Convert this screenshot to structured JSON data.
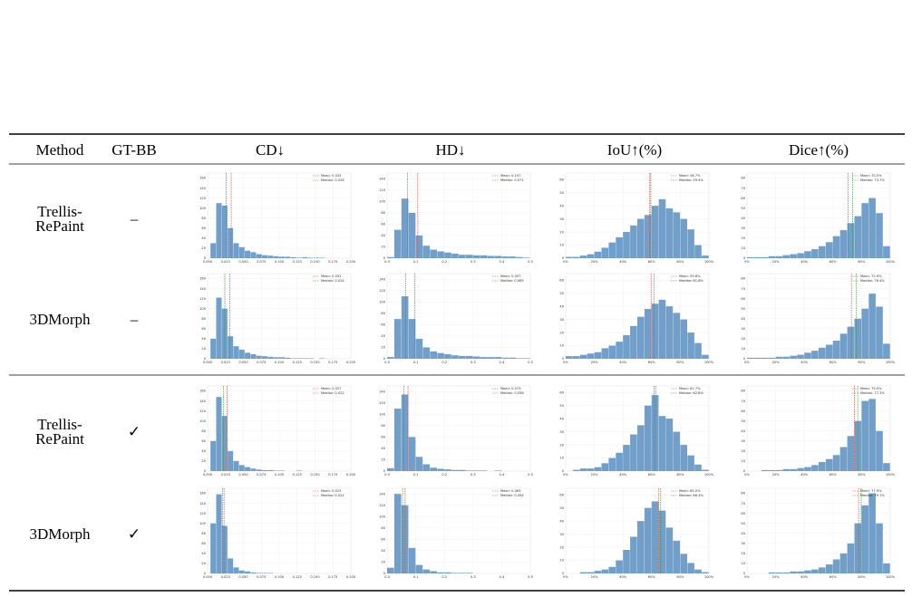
{
  "table": {
    "headers": [
      "Method",
      "GT-BB",
      "CD↓",
      "HD↓",
      "IoU↑(%)",
      "Dice↑(%)"
    ],
    "bar_color": "#6f9fca",
    "mean_color": "#e0473c",
    "median_color": "#3a9a3a",
    "columns": [
      {
        "xlim": [
          0,
          0.2
        ],
        "ylim": [
          0,
          170
        ],
        "xticks": [
          {
            "value": 0,
            "label": "0.000"
          },
          {
            "value": 0.025,
            "label": "0.025"
          },
          {
            "value": 0.05,
            "label": "0.050"
          },
          {
            "value": 0.075,
            "label": "0.075"
          },
          {
            "value": 0.1,
            "label": "0.100"
          },
          {
            "value": 0.125,
            "label": "0.125"
          },
          {
            "value": 0.15,
            "label": "0.150"
          },
          {
            "value": 0.175,
            "label": "0.175"
          },
          {
            "value": 0.2,
            "label": "0.200"
          }
        ],
        "yticks": [
          0,
          20,
          40,
          60,
          80,
          100,
          120,
          140,
          160
        ],
        "bins": [
          0.004,
          0.012,
          0.02,
          0.028,
          0.036,
          0.044,
          0.052,
          0.06,
          0.068,
          0.076,
          0.084,
          0.092,
          0.1,
          0.108,
          0.116,
          0.124,
          0.132,
          0.14,
          0.148,
          0.156,
          0.164
        ]
      },
      {
        "xlim": [
          0,
          0.5
        ],
        "ylim": [
          0,
          150
        ],
        "xticks": [
          {
            "value": 0,
            "label": "0.0"
          },
          {
            "value": 0.1,
            "label": "0.1"
          },
          {
            "value": 0.2,
            "label": "0.2"
          },
          {
            "value": 0.3,
            "label": "0.3"
          },
          {
            "value": 0.4,
            "label": "0.4"
          },
          {
            "value": 0.5,
            "label": "0.5"
          }
        ],
        "yticks": [
          0,
          20,
          40,
          60,
          80,
          100,
          120,
          140
        ],
        "bins": [
          0,
          0.025,
          0.05,
          0.075,
          0.1,
          0.125,
          0.15,
          0.175,
          0.2,
          0.225,
          0.25,
          0.275,
          0.3,
          0.325,
          0.35,
          0.375,
          0.4,
          0.425,
          0.45,
          0.475,
          0.5
        ]
      },
      {
        "xlim": [
          0,
          100
        ],
        "ylim": [
          0,
          65
        ],
        "xticks": [
          {
            "value": 0,
            "label": "0%"
          },
          {
            "value": 20,
            "label": "20%"
          },
          {
            "value": 40,
            "label": "40%"
          },
          {
            "value": 60,
            "label": "60%"
          },
          {
            "value": 80,
            "label": "80%"
          },
          {
            "value": 100,
            "label": "100%"
          }
        ],
        "yticks": [
          0,
          10,
          20,
          30,
          40,
          50,
          60
        ],
        "bins": [
          0,
          5,
          10,
          15,
          20,
          25,
          30,
          35,
          40,
          45,
          50,
          55,
          60,
          65,
          70,
          75,
          80,
          85,
          90,
          95,
          100
        ]
      },
      {
        "xlim": [
          0,
          100
        ],
        "ylim": [
          0,
          85
        ],
        "xticks": [
          {
            "value": 0,
            "label": "0%"
          },
          {
            "value": 20,
            "label": "20%"
          },
          {
            "value": 40,
            "label": "40%"
          },
          {
            "value": 60,
            "label": "60%"
          },
          {
            "value": 80,
            "label": "80%"
          },
          {
            "value": 100,
            "label": "100%"
          }
        ],
        "yticks": [
          0,
          10,
          20,
          30,
          40,
          50,
          60,
          70,
          80
        ],
        "bins": [
          0,
          5,
          10,
          15,
          20,
          25,
          30,
          35,
          40,
          45,
          50,
          55,
          60,
          65,
          70,
          75,
          80,
          85,
          90,
          95,
          100
        ]
      }
    ],
    "rows": [
      {
        "method": [
          "Trellis-",
          "RePaint"
        ],
        "gt_bb": "–",
        "charts": [
          {
            "counts": [
              30,
              110,
              105,
              60,
              30,
              22,
              15,
              12,
              8,
              6,
              5,
              4,
              3,
              3,
              2,
              1,
              2,
              1,
              1,
              1
            ],
            "mean": {
              "value": 0.033,
              "label": "Mean: 0.033"
            },
            "median": {
              "value": 0.026,
              "label": "Median: 0.026"
            }
          },
          {
            "counts": [
              2,
              50,
              105,
              80,
              40,
              22,
              15,
              12,
              10,
              8,
              6,
              6,
              5,
              5,
              4,
              4,
              3,
              3,
              2,
              1
            ],
            "mean": {
              "value": 0.107,
              "label": "Mean: 0.107"
            },
            "median": {
              "value": 0.071,
              "label": "Median: 0.071"
            }
          },
          {
            "counts": [
              1,
              1,
              2,
              3,
              5,
              8,
              12,
              16,
              20,
              25,
              30,
              33,
              40,
              45,
              38,
              35,
              30,
              22,
              10,
              2
            ],
            "mean": {
              "value": 58.7,
              "label": "Mean: 58.7%"
            },
            "median": {
              "value": 59.4,
              "label": "Median: 59.4%"
            }
          },
          {
            "counts": [
              1,
              1,
              1,
              2,
              2,
              3,
              4,
              5,
              7,
              9,
              12,
              16,
              22,
              28,
              35,
              42,
              55,
              60,
              45,
              12
            ],
            "mean": {
              "value": 70.5,
              "label": "Mean: 70.5%"
            },
            "median": {
              "value": 73.7,
              "label": "Median: 73.7%"
            }
          }
        ]
      },
      {
        "method": [
          "3DMorph"
        ],
        "gt_bb": "–",
        "charts": [
          {
            "counts": [
              40,
              122,
              100,
              45,
              25,
              18,
              12,
              9,
              6,
              5,
              4,
              3,
              3,
              2,
              1,
              1,
              1,
              1,
              0,
              1
            ],
            "mean": {
              "value": 0.031,
              "label": "Mean: 0.031"
            },
            "median": {
              "value": 0.024,
              "label": "Median: 0.024"
            }
          },
          {
            "counts": [
              3,
              70,
              110,
              70,
              35,
              20,
              13,
              10,
              8,
              6,
              5,
              5,
              4,
              3,
              3,
              3,
              2,
              2,
              1,
              1
            ],
            "mean": {
              "value": 0.097,
              "label": "Mean: 0.097"
            },
            "median": {
              "value": 0.065,
              "label": "Median: 0.065"
            }
          },
          {
            "counts": [
              2,
              2,
              3,
              4,
              5,
              8,
              10,
              13,
              18,
              25,
              32,
              38,
              42,
              45,
              40,
              35,
              30,
              20,
              12,
              3
            ],
            "mean": {
              "value": 59.6,
              "label": "Mean: 59.6%"
            },
            "median": {
              "value": 61.6,
              "label": "Median: 61.6%"
            }
          },
          {
            "counts": [
              1,
              1,
              1,
              1,
              2,
              2,
              3,
              4,
              6,
              8,
              11,
              14,
              18,
              25,
              32,
              40,
              50,
              65,
              52,
              15
            ],
            "mean": {
              "value": 72.9,
              "label": "Mean: 72.9%"
            },
            "median": {
              "value": 76.4,
              "label": "Median: 76.4%"
            }
          }
        ]
      },
      {
        "method": [
          "Trellis-",
          "RePaint"
        ],
        "gt_bb": "✓",
        "charts": [
          {
            "counts": [
              60,
              148,
              110,
              40,
              20,
              12,
              8,
              5,
              3,
              2,
              2,
              1,
              1,
              0,
              0,
              1,
              0,
              0,
              0,
              0
            ],
            "mean": {
              "value": 0.027,
              "label": "Mean: 0.027"
            },
            "median": {
              "value": 0.022,
              "label": "Median: 0.022"
            }
          },
          {
            "counts": [
              5,
              110,
              135,
              60,
              25,
              12,
              6,
              4,
              3,
              2,
              2,
              1,
              1,
              1,
              0,
              1,
              0,
              0,
              0,
              0
            ],
            "mean": {
              "value": 0.073,
              "label": "Mean: 0.073"
            },
            "median": {
              "value": 0.058,
              "label": "Median: 0.058"
            }
          },
          {
            "counts": [
              0,
              1,
              2,
              2,
              3,
              6,
              10,
              14,
              20,
              28,
              35,
              50,
              58,
              42,
              40,
              30,
              20,
              12,
              5,
              1
            ],
            "mean": {
              "value": 61.7,
              "label": "Mean: 61.7%"
            },
            "median": {
              "value": 62.8,
              "label": "Median: 62.8%"
            }
          },
          {
            "counts": [
              0,
              0,
              1,
              1,
              1,
              2,
              2,
              3,
              4,
              6,
              9,
              12,
              16,
              24,
              35,
              50,
              70,
              72,
              40,
              8
            ],
            "mean": {
              "value": 75.0,
              "label": "Mean: 75.0%"
            },
            "median": {
              "value": 77.3,
              "label": "Median: 77.3%"
            }
          }
        ]
      },
      {
        "method": [
          "3DMorph"
        ],
        "gt_bb": "✓",
        "charts": [
          {
            "counts": [
              100,
              158,
              95,
              30,
              12,
              6,
              4,
              2,
              1,
              1,
              1,
              0,
              0,
              0,
              0,
              0,
              0,
              0,
              0,
              0
            ],
            "mean": {
              "value": 0.023,
              "label": "Mean: 0.023"
            },
            "median": {
              "value": 0.021,
              "label": "Median: 0.021"
            }
          },
          {
            "counts": [
              10,
              140,
              120,
              45,
              15,
              7,
              4,
              2,
              2,
              1,
              1,
              1,
              0,
              0,
              0,
              0,
              0,
              0,
              0,
              0
            ],
            "mean": {
              "value": 0.063,
              "label": "Mean: 0.063"
            },
            "median": {
              "value": 0.054,
              "label": "Median: 0.054"
            }
          },
          {
            "counts": [
              0,
              0,
              1,
              1,
              2,
              3,
              5,
              10,
              18,
              28,
              40,
              50,
              55,
              48,
              35,
              25,
              15,
              8,
              3,
              1
            ],
            "mean": {
              "value": 65.0,
              "label": "Mean: 65.0%"
            },
            "median": {
              "value": 66.3,
              "label": "Median: 66.3%"
            }
          },
          {
            "counts": [
              0,
              0,
              0,
              1,
              1,
              1,
              2,
              2,
              3,
              4,
              6,
              9,
              14,
              20,
              30,
              50,
              68,
              80,
              50,
              10
            ],
            "mean": {
              "value": 77.9,
              "label": "Mean: 77.9%"
            },
            "median": {
              "value": 79.7,
              "label": "Median: 79.7%"
            }
          }
        ]
      }
    ]
  }
}
